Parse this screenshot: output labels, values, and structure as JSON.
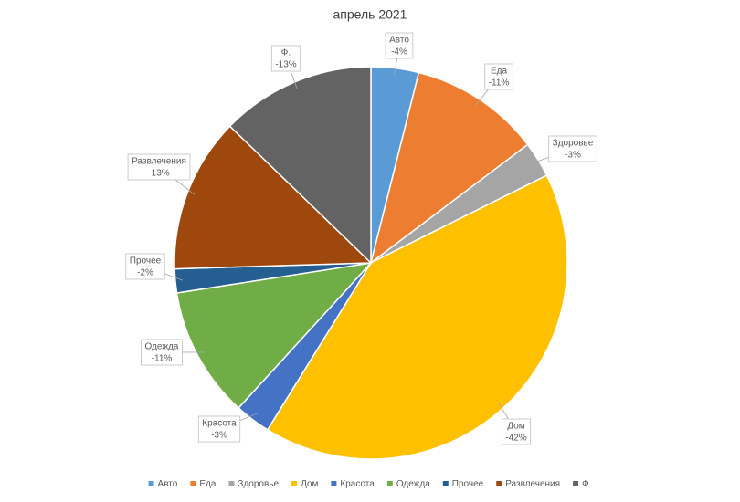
{
  "chart_data": {
    "type": "pie",
    "title": "апрель 2021",
    "categories": [
      "Авто",
      "Еда",
      "Здоровье",
      "Дом",
      "Красота",
      "Одежда",
      "Прочее",
      "Развлечения",
      "Ф."
    ],
    "values": [
      -4,
      -11,
      -3,
      -42,
      -3,
      -11,
      -2,
      -13,
      -13
    ],
    "value_labels": [
      "-4%",
      "-11%",
      "-3%",
      "-42%",
      "-3%",
      "-11%",
      "-2%",
      "-13%",
      "-13%"
    ],
    "colors": [
      "#5b9bd5",
      "#ed7d31",
      "#a5a5a5",
      "#ffc000",
      "#4472c4",
      "#70ad47",
      "#255e91",
      "#9e480e",
      "#636363"
    ],
    "legend": "bottom"
  }
}
